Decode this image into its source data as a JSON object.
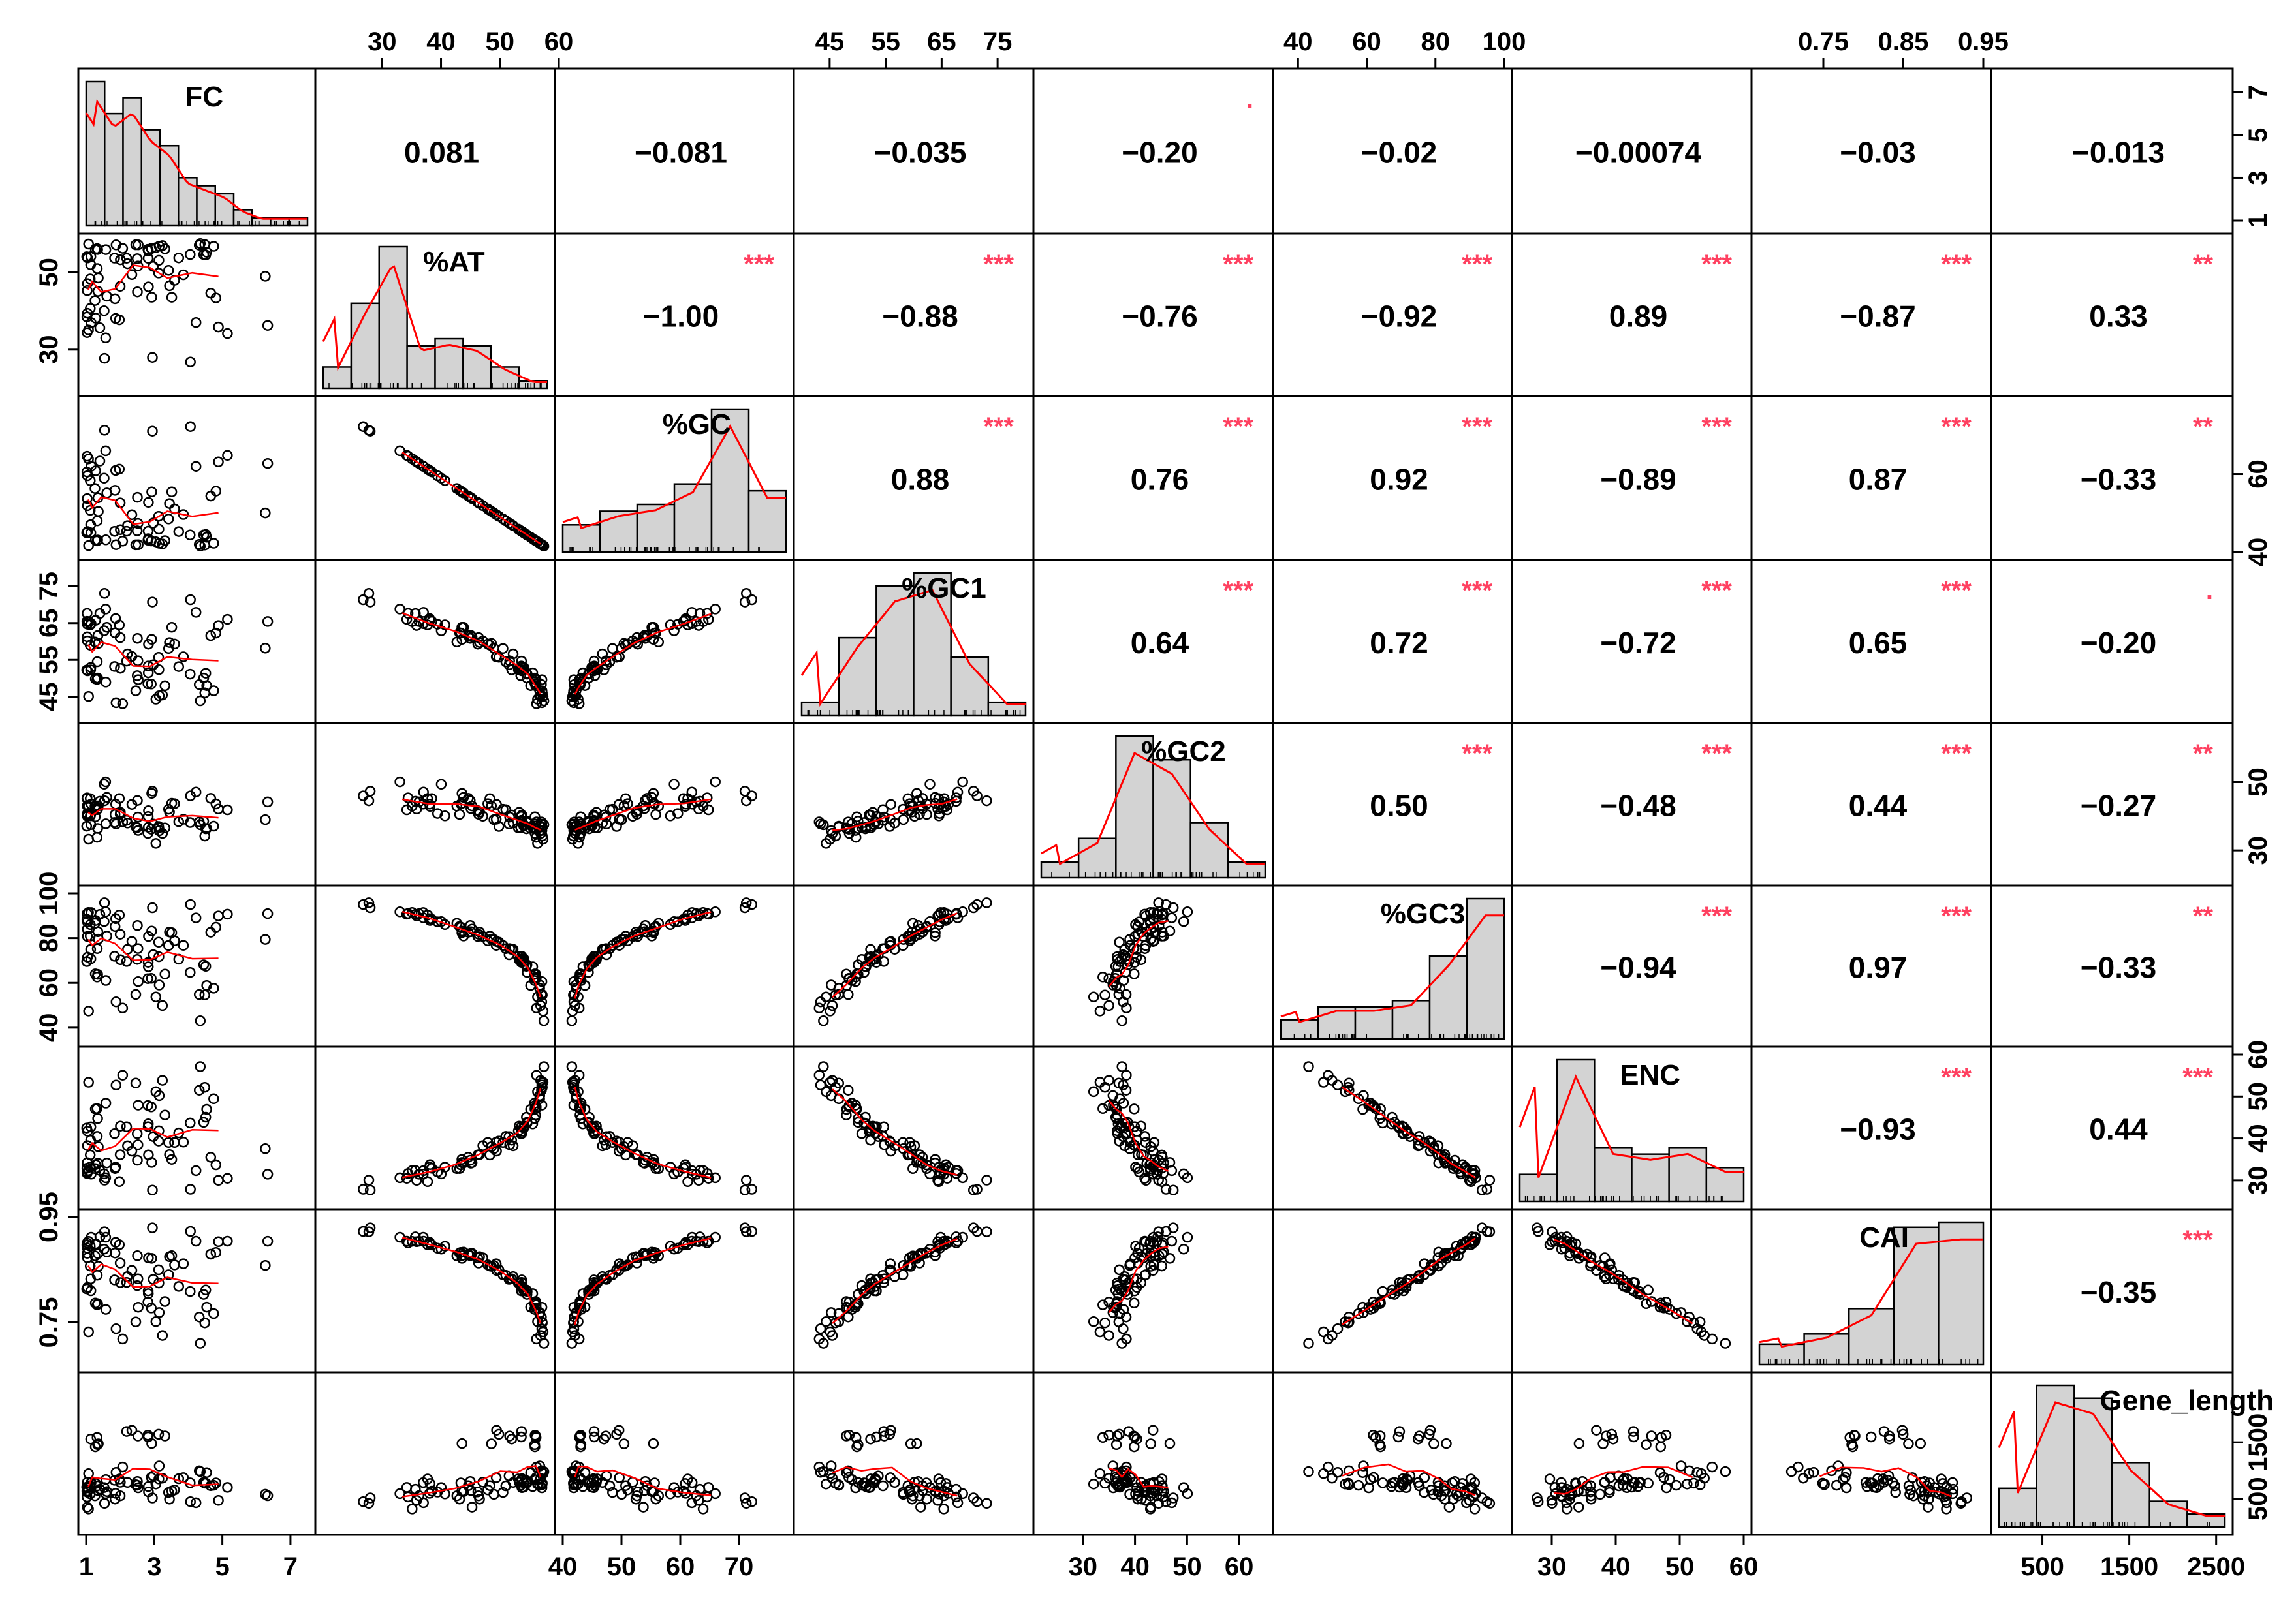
{
  "chart_data": {
    "type": "scatter-matrix",
    "variables": [
      "FC",
      "%AT",
      "%GC",
      "%GC1",
      "%GC2",
      "%GC3",
      "ENC",
      "CAI",
      "Gene_length"
    ],
    "ranges": [
      [
        1,
        7.5
      ],
      [
        20,
        58
      ],
      [
        40,
        78
      ],
      [
        40,
        80
      ],
      [
        22,
        65
      ],
      [
        35,
        100
      ],
      [
        25,
        60
      ],
      [
        0.67,
        0.95
      ],
      [
        0,
        2600
      ]
    ],
    "axis_ticks": {
      "top": [
        {
          "var": 1,
          "ticks": [
            "30",
            "40",
            "50",
            "60"
          ]
        },
        {
          "var": 3,
          "ticks": [
            "45",
            "55",
            "65",
            "75"
          ]
        },
        {
          "var": 5,
          "ticks": [
            "40",
            "60",
            "80",
            "100"
          ]
        },
        {
          "var": 7,
          "ticks": [
            "0.75",
            "0.85",
            "0.95"
          ]
        }
      ],
      "bottom": [
        {
          "var": 0,
          "ticks": [
            "1",
            "3",
            "5",
            "7"
          ]
        },
        {
          "var": 2,
          "ticks": [
            "40",
            "50",
            "60",
            "70"
          ]
        },
        {
          "var": 4,
          "ticks": [
            "30",
            "40",
            "50",
            "60"
          ]
        },
        {
          "var": 6,
          "ticks": [
            "30",
            "40",
            "50",
            "60"
          ]
        },
        {
          "var": 8,
          "ticks": [
            "500",
            "1500",
            "2500"
          ]
        }
      ],
      "left": [
        {
          "var": 1,
          "ticks": [
            "30",
            "50"
          ]
        },
        {
          "var": 3,
          "ticks": [
            "45",
            "55",
            "65",
            "75"
          ]
        },
        {
          "var": 5,
          "ticks": [
            "40",
            "60",
            "80",
            "100"
          ]
        },
        {
          "var": 7,
          "ticks": [
            "0.75",
            "0.95"
          ]
        }
      ],
      "right": [
        {
          "var": 0,
          "ticks": [
            "1",
            "3",
            "5",
            "7"
          ]
        },
        {
          "var": 2,
          "ticks": [
            "40",
            "60"
          ]
        },
        {
          "var": 4,
          "ticks": [
            "30",
            "50"
          ]
        },
        {
          "var": 6,
          "ticks": [
            "30",
            "40",
            "50",
            "60"
          ]
        },
        {
          "var": 8,
          "ticks": [
            "500",
            "1500"
          ]
        }
      ]
    },
    "correlations": [
      {
        "row": 0,
        "col": 1,
        "r": "0.081",
        "stars": ""
      },
      {
        "row": 0,
        "col": 2,
        "r": "−0.081",
        "stars": ""
      },
      {
        "row": 0,
        "col": 3,
        "r": "−0.035",
        "stars": ""
      },
      {
        "row": 0,
        "col": 4,
        "r": "−0.20",
        "stars": "."
      },
      {
        "row": 0,
        "col": 5,
        "r": "−0.02",
        "stars": ""
      },
      {
        "row": 0,
        "col": 6,
        "r": "−0.00074",
        "stars": ""
      },
      {
        "row": 0,
        "col": 7,
        "r": "−0.03",
        "stars": ""
      },
      {
        "row": 0,
        "col": 8,
        "r": "−0.013",
        "stars": ""
      },
      {
        "row": 1,
        "col": 2,
        "r": "−1.00",
        "stars": "***"
      },
      {
        "row": 1,
        "col": 3,
        "r": "−0.88",
        "stars": "***"
      },
      {
        "row": 1,
        "col": 4,
        "r": "−0.76",
        "stars": "***"
      },
      {
        "row": 1,
        "col": 5,
        "r": "−0.92",
        "stars": "***"
      },
      {
        "row": 1,
        "col": 6,
        "r": "0.89",
        "stars": "***"
      },
      {
        "row": 1,
        "col": 7,
        "r": "−0.87",
        "stars": "***"
      },
      {
        "row": 1,
        "col": 8,
        "r": "0.33",
        "stars": "**"
      },
      {
        "row": 2,
        "col": 3,
        "r": "0.88",
        "stars": "***"
      },
      {
        "row": 2,
        "col": 4,
        "r": "0.76",
        "stars": "***"
      },
      {
        "row": 2,
        "col": 5,
        "r": "0.92",
        "stars": "***"
      },
      {
        "row": 2,
        "col": 6,
        "r": "−0.89",
        "stars": "***"
      },
      {
        "row": 2,
        "col": 7,
        "r": "0.87",
        "stars": "***"
      },
      {
        "row": 2,
        "col": 8,
        "r": "−0.33",
        "stars": "**"
      },
      {
        "row": 3,
        "col": 4,
        "r": "0.64",
        "stars": "***"
      },
      {
        "row": 3,
        "col": 5,
        "r": "0.72",
        "stars": "***"
      },
      {
        "row": 3,
        "col": 6,
        "r": "−0.72",
        "stars": "***"
      },
      {
        "row": 3,
        "col": 7,
        "r": "0.65",
        "stars": "***"
      },
      {
        "row": 3,
        "col": 8,
        "r": "−0.20",
        "stars": "."
      },
      {
        "row": 4,
        "col": 5,
        "r": "0.50",
        "stars": "***"
      },
      {
        "row": 4,
        "col": 6,
        "r": "−0.48",
        "stars": "***"
      },
      {
        "row": 4,
        "col": 7,
        "r": "0.44",
        "stars": "***"
      },
      {
        "row": 4,
        "col": 8,
        "r": "−0.27",
        "stars": "**"
      },
      {
        "row": 5,
        "col": 6,
        "r": "−0.94",
        "stars": "***"
      },
      {
        "row": 5,
        "col": 7,
        "r": "0.97",
        "stars": "***"
      },
      {
        "row": 5,
        "col": 8,
        "r": "−0.33",
        "stars": "**"
      },
      {
        "row": 6,
        "col": 7,
        "r": "−0.93",
        "stars": "***"
      },
      {
        "row": 6,
        "col": 8,
        "r": "0.44",
        "stars": "***"
      },
      {
        "row": 7,
        "col": 8,
        "r": "−0.35",
        "stars": "***"
      }
    ],
    "histograms": [
      [
        18,
        14,
        16,
        12,
        10,
        6,
        5,
        4,
        2,
        1,
        1,
        1
      ],
      [
        3,
        12,
        20,
        6,
        7,
        6,
        3,
        1
      ],
      [
        4,
        6,
        7,
        10,
        21,
        9
      ],
      [
        2,
        12,
        20,
        22,
        9,
        2
      ],
      [
        2,
        5,
        18,
        15,
        7,
        2
      ],
      [
        3,
        5,
        5,
        6,
        13,
        22
      ],
      [
        4,
        21,
        8,
        7,
        8,
        5
      ],
      [
        4,
        6,
        11,
        27,
        28
      ],
      [
        3,
        11,
        10,
        5,
        2,
        1
      ]
    ],
    "point_count": 80,
    "colors": {
      "points": "#000000",
      "smooth": "#ff0000",
      "bars": "#d3d3d3",
      "stars": "#ff4060"
    }
  }
}
